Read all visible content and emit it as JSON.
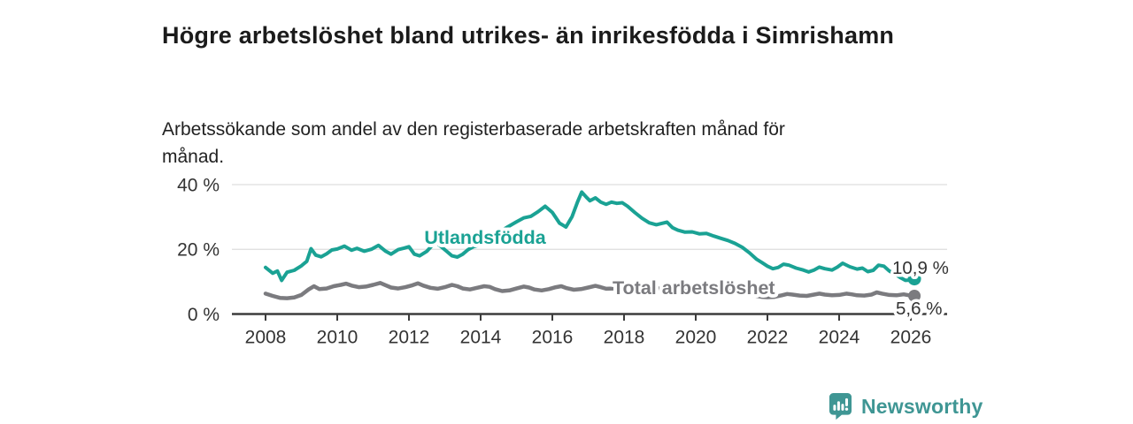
{
  "header": {
    "title": "Högre arbetslöshet bland utrikes- än inrikesfödda i Simrishamn",
    "subtitle": "Arbetssökande som andel av den registerbaserade arbetskraften månad för månad."
  },
  "brand": {
    "name": "Newsworthy",
    "icon": "bar-chart-speech-bubble-icon",
    "color": "#3f9694"
  },
  "colors": {
    "teal_series": "#1aa294",
    "gray_series": "#7b7b7f",
    "axis_text": "#333333",
    "grid_line": "#dddddd",
    "axis_line": "#3c3c3c",
    "background": "#ffffff"
  },
  "chart_data": {
    "type": "line",
    "title": "Högre arbetslöshet bland utrikes- än inrikesfödda i Simrishamn",
    "xlabel": "",
    "ylabel": "",
    "grid": "horizontal",
    "legend": "inline-labels",
    "x_axis": {
      "ticks": [
        2008,
        2010,
        2012,
        2014,
        2016,
        2018,
        2020,
        2022,
        2024,
        2026
      ],
      "range": [
        2007.1,
        2027.0
      ]
    },
    "y_axis": {
      "ticks": [
        {
          "value": 0,
          "label": "0 %"
        },
        {
          "value": 20,
          "label": "20 %"
        },
        {
          "value": 40,
          "label": "40 %"
        }
      ],
      "range": [
        0,
        42
      ],
      "unit": "%"
    },
    "series": [
      {
        "name": "Utlandsfödda",
        "color": "#1aa294",
        "stroke_width": 4,
        "end_label": "10,9 %",
        "end_value": 10.9,
        "points": [
          [
            2008.0,
            14.4
          ],
          [
            2008.2,
            12.6
          ],
          [
            2008.33,
            13.3
          ],
          [
            2008.45,
            10.4
          ],
          [
            2008.6,
            12.9
          ],
          [
            2008.8,
            13.5
          ],
          [
            2009.0,
            14.9
          ],
          [
            2009.15,
            16.3
          ],
          [
            2009.27,
            20.2
          ],
          [
            2009.4,
            18.2
          ],
          [
            2009.55,
            17.7
          ],
          [
            2009.7,
            18.6
          ],
          [
            2009.85,
            19.8
          ],
          [
            2010.0,
            20.1
          ],
          [
            2010.2,
            21.0
          ],
          [
            2010.4,
            19.7
          ],
          [
            2010.55,
            20.3
          ],
          [
            2010.75,
            19.4
          ],
          [
            2010.95,
            20.0
          ],
          [
            2011.15,
            21.2
          ],
          [
            2011.35,
            19.4
          ],
          [
            2011.5,
            18.5
          ],
          [
            2011.7,
            19.9
          ],
          [
            2011.85,
            20.3
          ],
          [
            2012.0,
            20.8
          ],
          [
            2012.15,
            18.5
          ],
          [
            2012.3,
            18.0
          ],
          [
            2012.5,
            19.4
          ],
          [
            2012.65,
            21.2
          ],
          [
            2012.78,
            21.9
          ],
          [
            2012.9,
            20.8
          ],
          [
            2013.05,
            19.4
          ],
          [
            2013.2,
            18.0
          ],
          [
            2013.35,
            17.6
          ],
          [
            2013.5,
            18.5
          ],
          [
            2013.65,
            19.9
          ],
          [
            2013.8,
            20.8
          ],
          [
            2014.0,
            21.5
          ],
          [
            2014.25,
            23.2
          ],
          [
            2014.5,
            25.2
          ],
          [
            2014.75,
            26.9
          ],
          [
            2015.0,
            28.5
          ],
          [
            2015.2,
            29.7
          ],
          [
            2015.4,
            30.2
          ],
          [
            2015.6,
            31.6
          ],
          [
            2015.8,
            33.3
          ],
          [
            2016.0,
            31.4
          ],
          [
            2016.2,
            28.1
          ],
          [
            2016.38,
            26.9
          ],
          [
            2016.55,
            30.1
          ],
          [
            2016.7,
            34.6
          ],
          [
            2016.82,
            37.7
          ],
          [
            2016.95,
            36.1
          ],
          [
            2017.05,
            35.0
          ],
          [
            2017.2,
            35.9
          ],
          [
            2017.35,
            34.6
          ],
          [
            2017.5,
            33.9
          ],
          [
            2017.65,
            34.6
          ],
          [
            2017.8,
            34.2
          ],
          [
            2017.95,
            34.4
          ],
          [
            2018.1,
            33.3
          ],
          [
            2018.3,
            31.4
          ],
          [
            2018.5,
            29.6
          ],
          [
            2018.7,
            28.2
          ],
          [
            2018.9,
            27.6
          ],
          [
            2019.05,
            28.0
          ],
          [
            2019.2,
            28.4
          ],
          [
            2019.35,
            26.7
          ],
          [
            2019.5,
            25.9
          ],
          [
            2019.7,
            25.3
          ],
          [
            2019.9,
            25.4
          ],
          [
            2020.1,
            24.8
          ],
          [
            2020.3,
            24.9
          ],
          [
            2020.5,
            24.1
          ],
          [
            2020.7,
            23.4
          ],
          [
            2020.9,
            22.7
          ],
          [
            2021.1,
            21.8
          ],
          [
            2021.3,
            20.6
          ],
          [
            2021.5,
            18.9
          ],
          [
            2021.7,
            16.9
          ],
          [
            2021.85,
            15.9
          ],
          [
            2022.0,
            14.8
          ],
          [
            2022.15,
            14.0
          ],
          [
            2022.3,
            14.4
          ],
          [
            2022.45,
            15.4
          ],
          [
            2022.6,
            15.1
          ],
          [
            2022.8,
            14.2
          ],
          [
            2023.0,
            13.6
          ],
          [
            2023.15,
            13.0
          ],
          [
            2023.3,
            13.6
          ],
          [
            2023.45,
            14.5
          ],
          [
            2023.6,
            14.0
          ],
          [
            2023.8,
            13.6
          ],
          [
            2023.95,
            14.5
          ],
          [
            2024.1,
            15.7
          ],
          [
            2024.3,
            14.6
          ],
          [
            2024.5,
            13.9
          ],
          [
            2024.65,
            14.2
          ],
          [
            2024.8,
            13.1
          ],
          [
            2024.95,
            13.5
          ],
          [
            2025.1,
            15.1
          ],
          [
            2025.25,
            14.8
          ],
          [
            2025.4,
            13.3
          ],
          [
            2025.55,
            12.4
          ],
          [
            2025.7,
            11.3
          ],
          [
            2025.85,
            10.4
          ],
          [
            2026.0,
            10.5
          ],
          [
            2026.1,
            10.9
          ]
        ]
      },
      {
        "name": "Total arbetslöshet",
        "color": "#7b7b7f",
        "stroke_width": 4.5,
        "end_label": "5,6 %",
        "end_value": 5.6,
        "points": [
          [
            2008.0,
            6.3
          ],
          [
            2008.2,
            5.6
          ],
          [
            2008.4,
            5.0
          ],
          [
            2008.6,
            4.9
          ],
          [
            2008.8,
            5.1
          ],
          [
            2009.0,
            5.9
          ],
          [
            2009.2,
            7.6
          ],
          [
            2009.35,
            8.6
          ],
          [
            2009.5,
            7.7
          ],
          [
            2009.7,
            7.9
          ],
          [
            2009.9,
            8.6
          ],
          [
            2010.1,
            9.0
          ],
          [
            2010.25,
            9.4
          ],
          [
            2010.4,
            8.8
          ],
          [
            2010.6,
            8.3
          ],
          [
            2010.8,
            8.5
          ],
          [
            2011.0,
            9.0
          ],
          [
            2011.2,
            9.6
          ],
          [
            2011.35,
            8.9
          ],
          [
            2011.5,
            8.2
          ],
          [
            2011.7,
            7.9
          ],
          [
            2011.9,
            8.3
          ],
          [
            2012.1,
            8.9
          ],
          [
            2012.25,
            9.5
          ],
          [
            2012.4,
            8.8
          ],
          [
            2012.6,
            8.1
          ],
          [
            2012.8,
            7.8
          ],
          [
            2013.0,
            8.3
          ],
          [
            2013.2,
            9.0
          ],
          [
            2013.35,
            8.6
          ],
          [
            2013.5,
            7.9
          ],
          [
            2013.7,
            7.6
          ],
          [
            2013.9,
            8.1
          ],
          [
            2014.1,
            8.6
          ],
          [
            2014.25,
            8.4
          ],
          [
            2014.4,
            7.7
          ],
          [
            2014.6,
            7.1
          ],
          [
            2014.8,
            7.3
          ],
          [
            2015.0,
            7.9
          ],
          [
            2015.2,
            8.5
          ],
          [
            2015.35,
            8.2
          ],
          [
            2015.5,
            7.6
          ],
          [
            2015.7,
            7.3
          ],
          [
            2015.9,
            7.7
          ],
          [
            2016.1,
            8.3
          ],
          [
            2016.25,
            8.6
          ],
          [
            2016.4,
            8.0
          ],
          [
            2016.6,
            7.5
          ],
          [
            2016.8,
            7.7
          ],
          [
            2017.0,
            8.2
          ],
          [
            2017.2,
            8.7
          ],
          [
            2017.35,
            8.3
          ],
          [
            2017.5,
            7.8
          ],
          [
            2017.7,
            7.9
          ],
          [
            2017.9,
            8.2
          ],
          [
            2018.1,
            8.5
          ],
          [
            2018.3,
            8.1
          ],
          [
            2018.5,
            7.5
          ],
          [
            2018.7,
            7.4
          ],
          [
            2018.9,
            7.8
          ],
          [
            2019.1,
            8.2
          ],
          [
            2019.3,
            7.9
          ],
          [
            2019.5,
            7.4
          ],
          [
            2019.7,
            7.3
          ],
          [
            2019.9,
            7.7
          ],
          [
            2020.1,
            8.1
          ],
          [
            2020.3,
            8.6
          ],
          [
            2020.5,
            8.8
          ],
          [
            2020.7,
            8.3
          ],
          [
            2020.9,
            7.8
          ],
          [
            2021.1,
            7.3
          ],
          [
            2021.3,
            6.7
          ],
          [
            2021.5,
            6.1
          ],
          [
            2021.7,
            5.6
          ],
          [
            2021.85,
            5.3
          ],
          [
            2022.0,
            5.2
          ],
          [
            2022.2,
            5.3
          ],
          [
            2022.4,
            5.8
          ],
          [
            2022.55,
            6.2
          ],
          [
            2022.7,
            6.0
          ],
          [
            2022.9,
            5.7
          ],
          [
            2023.1,
            5.6
          ],
          [
            2023.3,
            6.0
          ],
          [
            2023.45,
            6.3
          ],
          [
            2023.6,
            6.0
          ],
          [
            2023.8,
            5.8
          ],
          [
            2024.0,
            5.9
          ],
          [
            2024.2,
            6.3
          ],
          [
            2024.35,
            6.1
          ],
          [
            2024.5,
            5.8
          ],
          [
            2024.7,
            5.7
          ],
          [
            2024.9,
            6.0
          ],
          [
            2025.05,
            6.7
          ],
          [
            2025.2,
            6.3
          ],
          [
            2025.4,
            5.9
          ],
          [
            2025.6,
            5.8
          ],
          [
            2025.8,
            6.1
          ],
          [
            2025.95,
            5.8
          ],
          [
            2026.1,
            5.6
          ]
        ]
      }
    ]
  }
}
